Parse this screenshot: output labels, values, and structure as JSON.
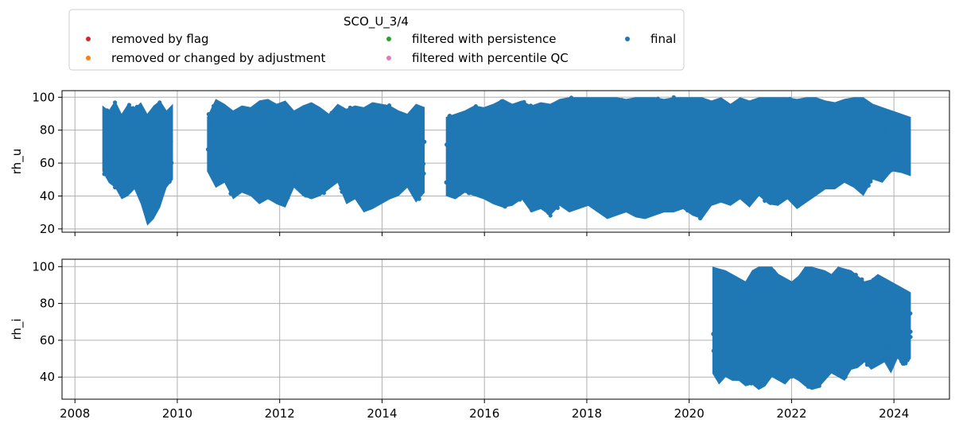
{
  "chart_data": {
    "type": "scatter",
    "legend": {
      "title": "SCO_U_3/4",
      "placement": "top-left above plots",
      "entries": [
        {
          "label": "removed by flag",
          "color": "#d62728"
        },
        {
          "label": "removed or changed by adjustment",
          "color": "#ff7f0e"
        },
        {
          "label": "filtered with persistence",
          "color": "#2ca02c"
        },
        {
          "label": "filtered with percentile QC",
          "color": "#e377c2"
        },
        {
          "label": "final",
          "color": "#1f77b4"
        }
      ]
    },
    "x_axis": {
      "type": "date",
      "range": [
        "2007-10-01",
        "2025-02-01"
      ],
      "ticks": [
        "2008",
        "2010",
        "2012",
        "2014",
        "2016",
        "2018",
        "2020",
        "2022",
        "2024"
      ],
      "tick_labels_shown_on": "bottom panel only"
    },
    "grid": true,
    "panels": [
      {
        "ylabel": "rh_u",
        "ylim": [
          18,
          104
        ],
        "yticks": [
          20,
          40,
          60,
          80,
          100
        ],
        "series": [
          {
            "name": "final",
            "color": "#1f77b4",
            "segments": [
              {
                "start": "2008-07-15",
                "end": "2009-12-01",
                "values": [
                  [
                    95,
                    55
                  ],
                  [
                    92,
                    48
                  ],
                  [
                    98,
                    45
                  ],
                  [
                    90,
                    38
                  ],
                  [
                    96,
                    40
                  ],
                  [
                    93,
                    44
                  ],
                  [
                    97,
                    35
                  ],
                  [
                    90,
                    22
                  ],
                  [
                    95,
                    26
                  ],
                  [
                    98,
                    33
                  ],
                  [
                    92,
                    45
                  ],
                  [
                    96,
                    50
                  ]
                ]
              },
              {
                "start": "2010-08-01",
                "end": "2014-11-01",
                "values": [
                  [
                    88,
                    55
                  ],
                  [
                    99,
                    45
                  ],
                  [
                    96,
                    48
                  ],
                  [
                    92,
                    38
                  ],
                  [
                    95,
                    42
                  ],
                  [
                    94,
                    40
                  ],
                  [
                    98,
                    35
                  ],
                  [
                    99,
                    38
                  ],
                  [
                    96,
                    35
                  ],
                  [
                    98,
                    33
                  ],
                  [
                    92,
                    45
                  ],
                  [
                    95,
                    40
                  ],
                  [
                    97,
                    38
                  ],
                  [
                    94,
                    40
                  ],
                  [
                    90,
                    44
                  ],
                  [
                    96,
                    48
                  ],
                  [
                    93,
                    35
                  ],
                  [
                    95,
                    38
                  ],
                  [
                    94,
                    30
                  ],
                  [
                    97,
                    32
                  ],
                  [
                    96,
                    35
                  ],
                  [
                    95,
                    38
                  ],
                  [
                    92,
                    40
                  ],
                  [
                    90,
                    45
                  ],
                  [
                    96,
                    36
                  ],
                  [
                    94,
                    42
                  ]
                ]
              },
              {
                "start": "2015-04-01",
                "end": "2024-05-01",
                "values": [
                  [
                    88,
                    40
                  ],
                  [
                    90,
                    38
                  ],
                  [
                    92,
                    42
                  ],
                  [
                    95,
                    40
                  ],
                  [
                    94,
                    38
                  ],
                  [
                    96,
                    35
                  ],
                  [
                    99,
                    33
                  ],
                  [
                    96,
                    34
                  ],
                  [
                    98,
                    38
                  ],
                  [
                    95,
                    30
                  ],
                  [
                    97,
                    32
                  ],
                  [
                    96,
                    28
                  ],
                  [
                    99,
                    34
                  ],
                  [
                    100,
                    30
                  ],
                  [
                    100,
                    32
                  ],
                  [
                    100,
                    34
                  ],
                  [
                    100,
                    30
                  ],
                  [
                    100,
                    26
                  ],
                  [
                    100,
                    28
                  ],
                  [
                    99,
                    30
                  ],
                  [
                    100,
                    27
                  ],
                  [
                    100,
                    26
                  ],
                  [
                    100,
                    28
                  ],
                  [
                    99,
                    30
                  ],
                  [
                    100,
                    30
                  ],
                  [
                    100,
                    32
                  ],
                  [
                    100,
                    28
                  ],
                  [
                    100,
                    26
                  ],
                  [
                    98,
                    34
                  ],
                  [
                    100,
                    36
                  ],
                  [
                    96,
                    34
                  ],
                  [
                    100,
                    38
                  ],
                  [
                    98,
                    33
                  ],
                  [
                    100,
                    40
                  ],
                  [
                    100,
                    35
                  ],
                  [
                    100,
                    34
                  ],
                  [
                    100,
                    38
                  ],
                  [
                    99,
                    32
                  ],
                  [
                    100,
                    36
                  ],
                  [
                    100,
                    40
                  ],
                  [
                    98,
                    44
                  ],
                  [
                    97,
                    44
                  ],
                  [
                    99,
                    48
                  ],
                  [
                    100,
                    45
                  ],
                  [
                    100,
                    40
                  ],
                  [
                    96,
                    50
                  ],
                  [
                    94,
                    48
                  ],
                  [
                    92,
                    55
                  ],
                  [
                    90,
                    54
                  ],
                  [
                    88,
                    52
                  ]
                ]
              }
            ]
          }
        ]
      },
      {
        "ylabel": "rh_i",
        "ylim": [
          28,
          104
        ],
        "yticks": [
          40,
          60,
          80,
          100
        ],
        "series": [
          {
            "name": "final",
            "color": "#1f77b4",
            "segments": [
              {
                "start": "2020-06-15",
                "end": "2024-05-01",
                "values": [
                  [
                    100,
                    42
                  ],
                  [
                    99,
                    36
                  ],
                  [
                    98,
                    40
                  ],
                  [
                    96,
                    38
                  ],
                  [
                    94,
                    38
                  ],
                  [
                    92,
                    35
                  ],
                  [
                    98,
                    36
                  ],
                  [
                    100,
                    33
                  ],
                  [
                    100,
                    35
                  ],
                  [
                    100,
                    40
                  ],
                  [
                    96,
                    38
                  ],
                  [
                    94,
                    36
                  ],
                  [
                    92,
                    40
                  ],
                  [
                    95,
                    38
                  ],
                  [
                    100,
                    35
                  ],
                  [
                    100,
                    33
                  ],
                  [
                    99,
                    34
                  ],
                  [
                    98,
                    38
                  ],
                  [
                    96,
                    42
                  ],
                  [
                    100,
                    40
                  ],
                  [
                    99,
                    38
                  ],
                  [
                    98,
                    44
                  ],
                  [
                    95,
                    45
                  ],
                  [
                    92,
                    48
                  ],
                  [
                    93,
                    44
                  ],
                  [
                    96,
                    46
                  ],
                  [
                    94,
                    48
                  ],
                  [
                    92,
                    42
                  ],
                  [
                    90,
                    50
                  ],
                  [
                    88,
                    46
                  ],
                  [
                    86,
                    50
                  ]
                ]
              }
            ]
          }
        ]
      }
    ]
  }
}
